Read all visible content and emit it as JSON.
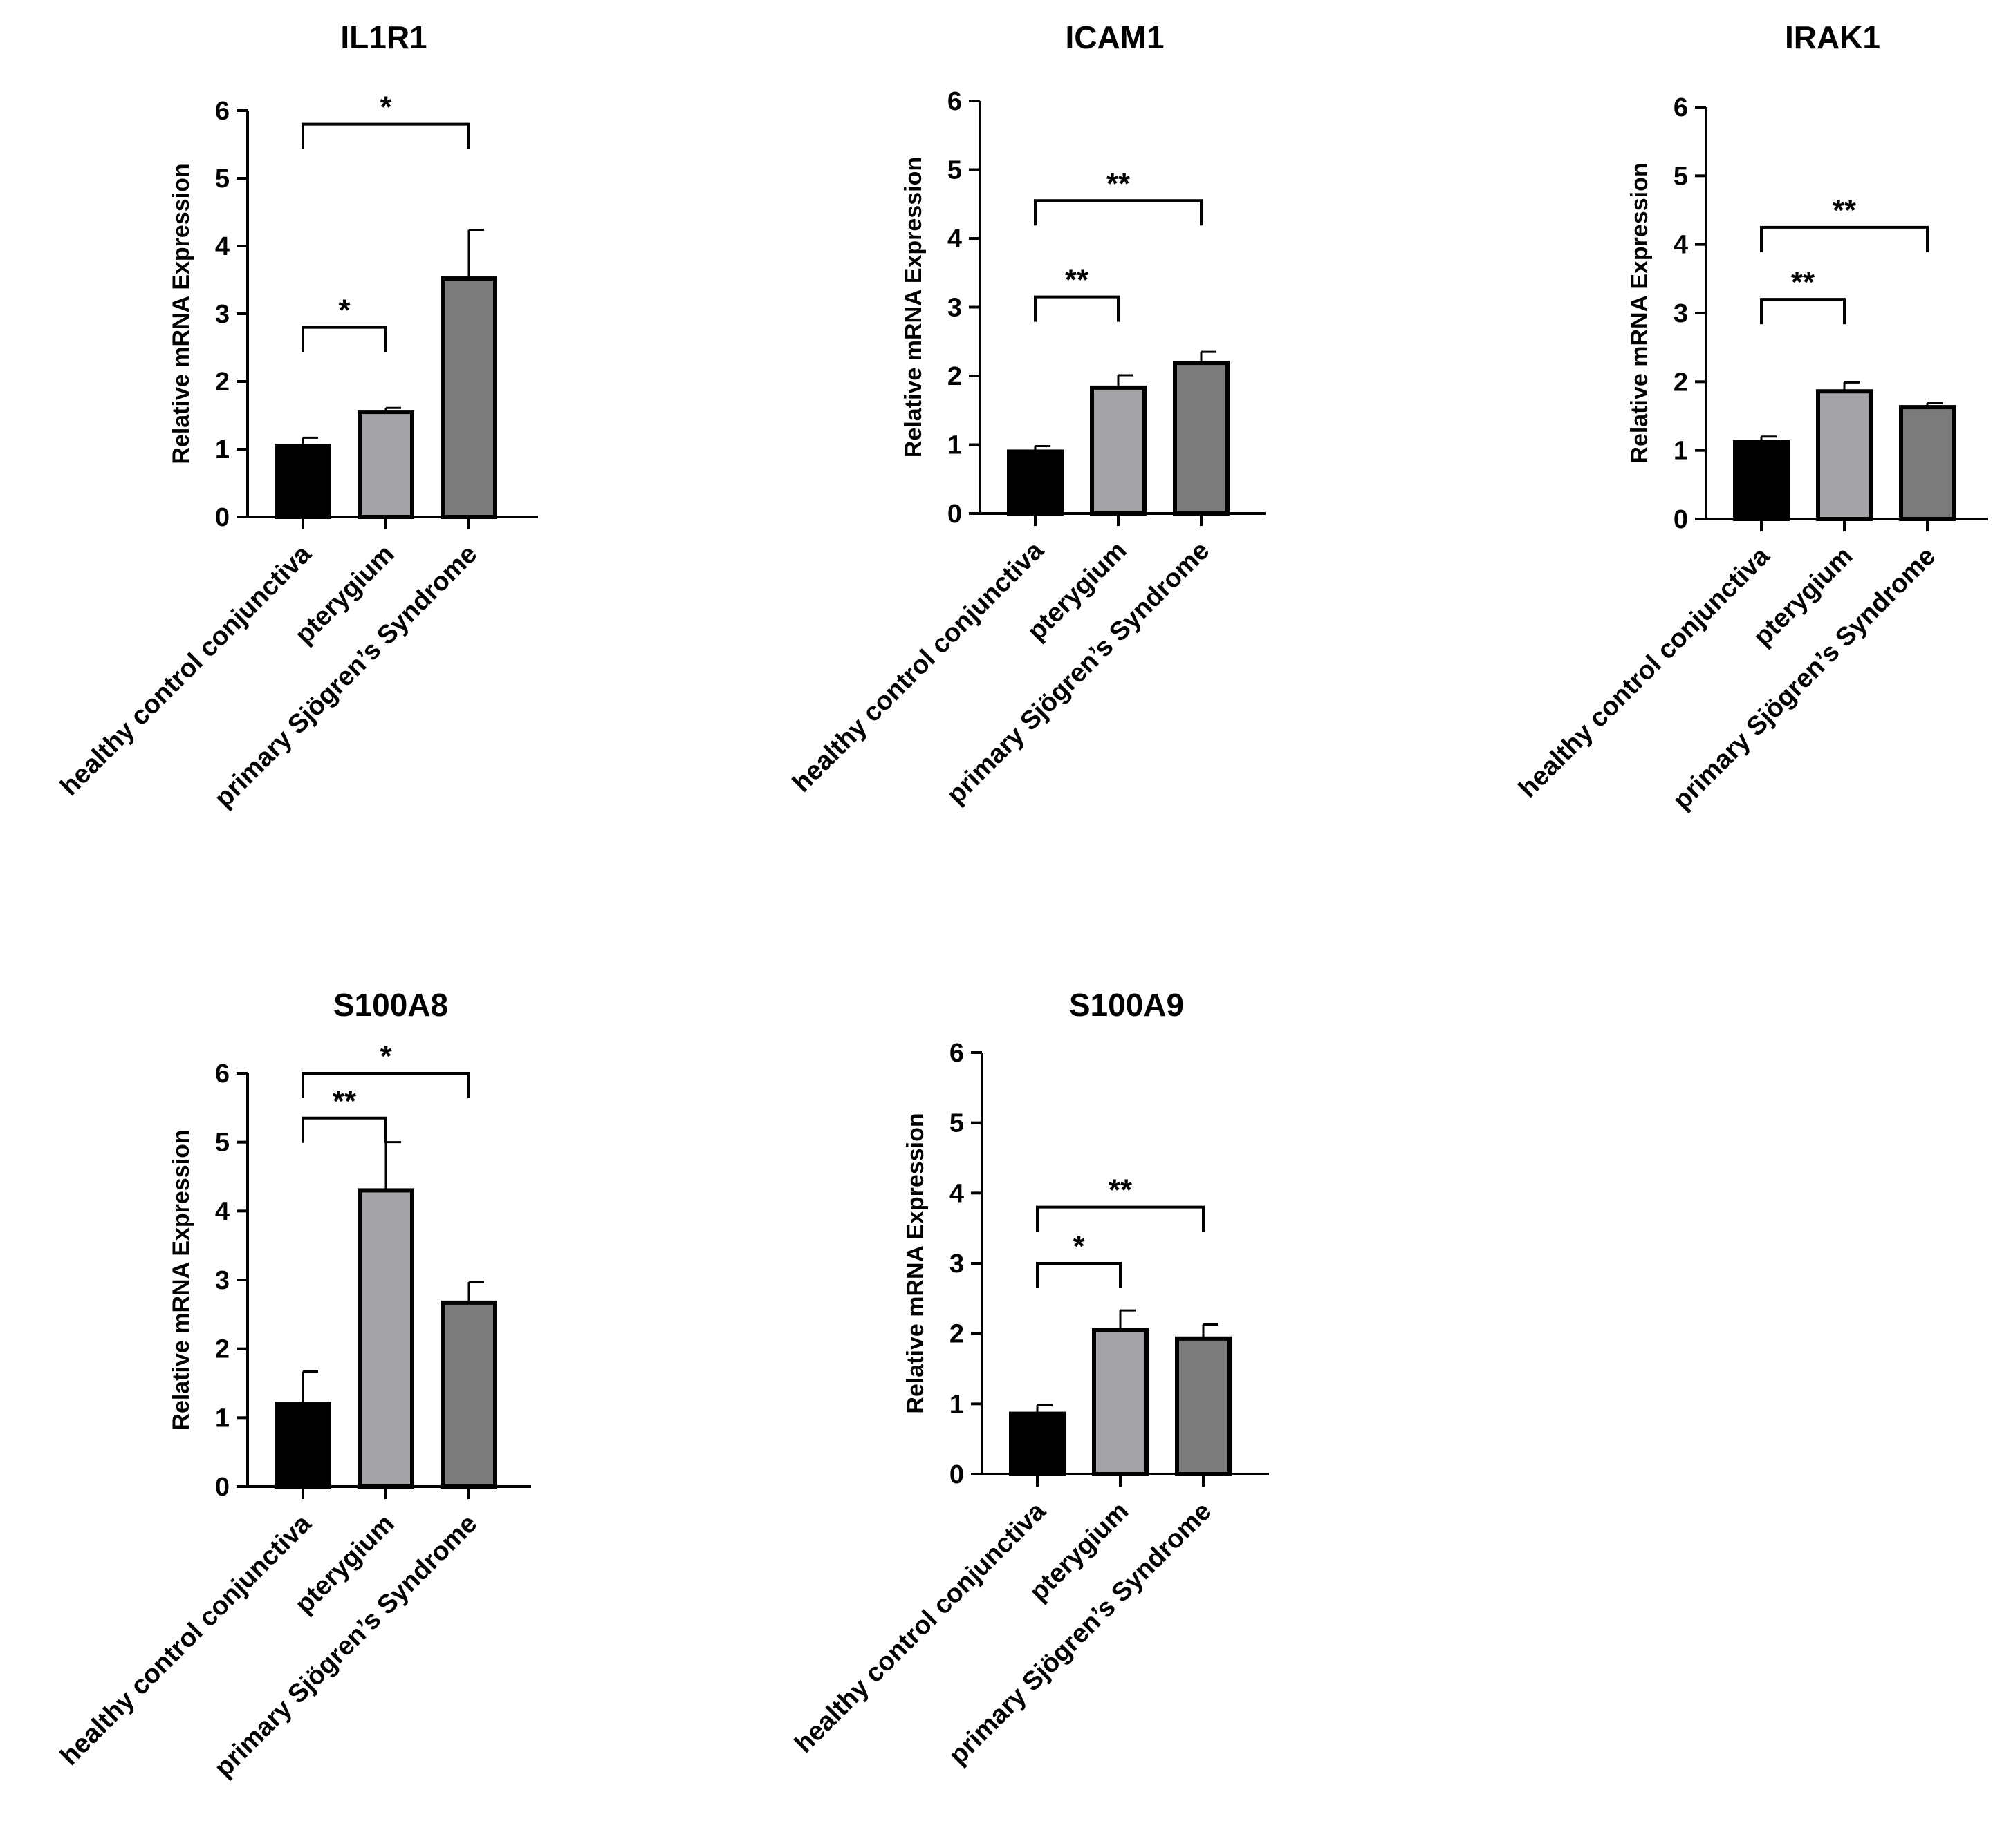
{
  "chart_data": [
    {
      "type": "bar",
      "title": "IL1R1",
      "ylabel": "Relative mRNA Expression",
      "ylim": [
        0,
        6
      ],
      "yticks": [
        0,
        1,
        2,
        3,
        4,
        5,
        6
      ],
      "categories": [
        "healthy control conjunctiva",
        "pterygium",
        "primary Sjögren’s Syndrome"
      ],
      "values": [
        1.05,
        1.55,
        3.52
      ],
      "errors": [
        0.12,
        0.06,
        0.72
      ],
      "bar_colors": [
        "#000000",
        "#a3a3a8",
        "#7b7b7b"
      ],
      "significance": [
        {
          "from": 0,
          "to": 1,
          "label": "*",
          "y": 2.8
        },
        {
          "from": 0,
          "to": 2,
          "label": "*",
          "y": 5.8
        }
      ]
    },
    {
      "type": "bar",
      "title": "ICAM1",
      "ylabel": "Relative mRNA Expression",
      "ylim": [
        0,
        6
      ],
      "yticks": [
        0,
        1,
        2,
        3,
        4,
        5,
        6
      ],
      "categories": [
        "healthy control conjunctiva",
        "pterygium",
        "primary Sjögren’s Syndrome"
      ],
      "values": [
        0.9,
        1.83,
        2.19
      ],
      "errors": [
        0.08,
        0.18,
        0.16
      ],
      "bar_colors": [
        "#000000",
        "#a3a3a8",
        "#7b7b7b"
      ],
      "significance": [
        {
          "from": 0,
          "to": 1,
          "label": "**",
          "y": 3.15
        },
        {
          "from": 0,
          "to": 2,
          "label": "**",
          "y": 4.55
        }
      ]
    },
    {
      "type": "bar",
      "title": "IRAK1",
      "ylabel": "Relative mRNA Expression",
      "ylim": [
        0,
        6
      ],
      "yticks": [
        0,
        1,
        2,
        3,
        4,
        5,
        6
      ],
      "categories": [
        "healthy control conjunctiva",
        "pterygium",
        "primary Sjögren’s Syndrome"
      ],
      "values": [
        1.12,
        1.86,
        1.63
      ],
      "errors": [
        0.08,
        0.13,
        0.06
      ],
      "bar_colors": [
        "#000000",
        "#a3a3a8",
        "#7b7b7b"
      ],
      "significance": [
        {
          "from": 0,
          "to": 1,
          "label": "**",
          "y": 3.2
        },
        {
          "from": 0,
          "to": 2,
          "label": "**",
          "y": 4.25
        }
      ]
    },
    {
      "type": "bar",
      "title": "S100A8",
      "ylabel": "Relative mRNA Expression",
      "ylim": [
        0,
        6
      ],
      "yticks": [
        0,
        1,
        2,
        3,
        4,
        5,
        6
      ],
      "categories": [
        "healthy control conjunctiva",
        "pterygium",
        "primary Sjögren’s Syndrome"
      ],
      "values": [
        1.2,
        4.3,
        2.67
      ],
      "errors": [
        0.47,
        0.7,
        0.3
      ],
      "bar_colors": [
        "#000000",
        "#a3a3a8",
        "#7b7b7b"
      ],
      "significance": [
        {
          "from": 0,
          "to": 1,
          "label": "**",
          "y": 5.35
        },
        {
          "from": 0,
          "to": 2,
          "label": "*",
          "y": 6.0
        }
      ]
    },
    {
      "type": "bar",
      "title": "S100A9",
      "ylabel": "Relative mRNA Expression",
      "ylim": [
        0,
        6
      ],
      "yticks": [
        0,
        1,
        2,
        3,
        4,
        5,
        6
      ],
      "categories": [
        "healthy control conjunctiva",
        "pterygium",
        "primary Sjögren’s Syndrome"
      ],
      "values": [
        0.86,
        2.05,
        1.93
      ],
      "errors": [
        0.12,
        0.28,
        0.2
      ],
      "bar_colors": [
        "#000000",
        "#a3a3a8",
        "#7b7b7b"
      ],
      "significance": [
        {
          "from": 0,
          "to": 1,
          "label": "*",
          "y": 3.0
        },
        {
          "from": 0,
          "to": 2,
          "label": "**",
          "y": 3.8
        }
      ]
    }
  ]
}
